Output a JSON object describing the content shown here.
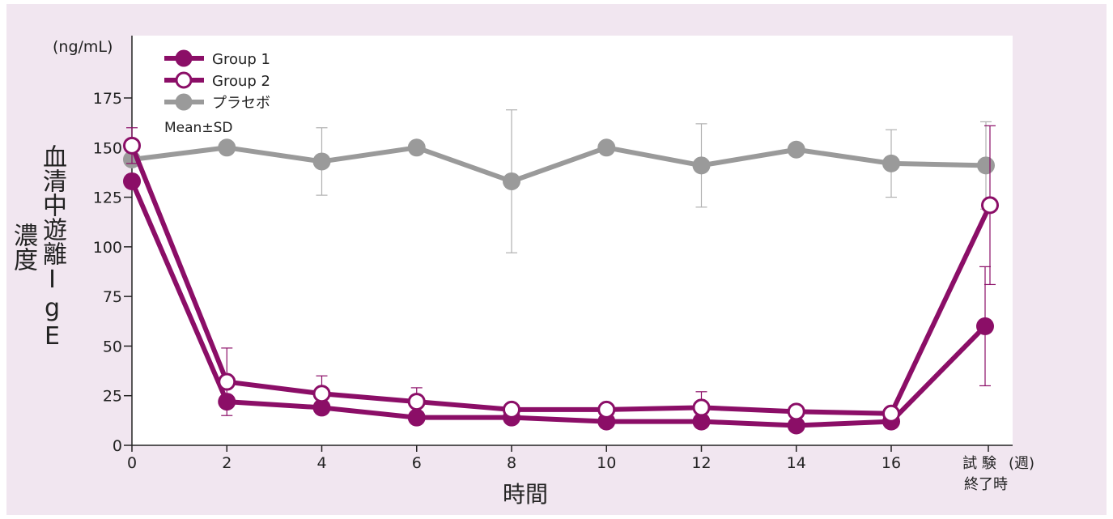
{
  "chart_data": {
    "type": "line",
    "unit_label": "(ng/mL)",
    "ylabel": "血清中遊離IgE濃度",
    "xlabel": "時間",
    "x_unit_label": "(週)",
    "end_label_line1": "試 験",
    "end_label_line2": "終了時",
    "ylim": [
      0,
      175
    ],
    "yticks": [
      0,
      25,
      50,
      75,
      100,
      125,
      150,
      175
    ],
    "xtick_labels": [
      "0",
      "2",
      "4",
      "6",
      "8",
      "10",
      "12",
      "14",
      "16"
    ],
    "annotation": "Mean±SD",
    "legend_position": "top-left",
    "series": [
      {
        "name": "Group 1",
        "color": "#8b0e67",
        "marker": "filled-circle",
        "x": [
          0,
          2,
          4,
          6,
          8,
          10,
          12,
          14,
          16,
          "試験終了時"
        ],
        "values": [
          133,
          22,
          19,
          14,
          14,
          12,
          12,
          10,
          12,
          60
        ],
        "sd": [
          null,
          null,
          3,
          null,
          null,
          null,
          null,
          null,
          null,
          30
        ]
      },
      {
        "name": "Group 2",
        "color": "#8b0e67",
        "marker": "open-circle",
        "x": [
          0,
          2,
          4,
          6,
          8,
          10,
          12,
          14,
          16,
          "試験終了時"
        ],
        "values": [
          151,
          32,
          26,
          22,
          18,
          18,
          19,
          17,
          16,
          121
        ],
        "sd": [
          9,
          17,
          9,
          7,
          null,
          null,
          8,
          null,
          null,
          40
        ]
      },
      {
        "name": "プラセボ",
        "color": "#9a9a9a",
        "marker": "filled-circle",
        "x": [
          0,
          2,
          4,
          6,
          8,
          10,
          12,
          14,
          16,
          "試験終了時"
        ],
        "values": [
          144,
          150,
          143,
          150,
          133,
          150,
          141,
          149,
          142,
          141
        ],
        "sd": [
          null,
          null,
          17,
          null,
          36,
          null,
          21,
          null,
          17,
          22
        ]
      }
    ]
  }
}
